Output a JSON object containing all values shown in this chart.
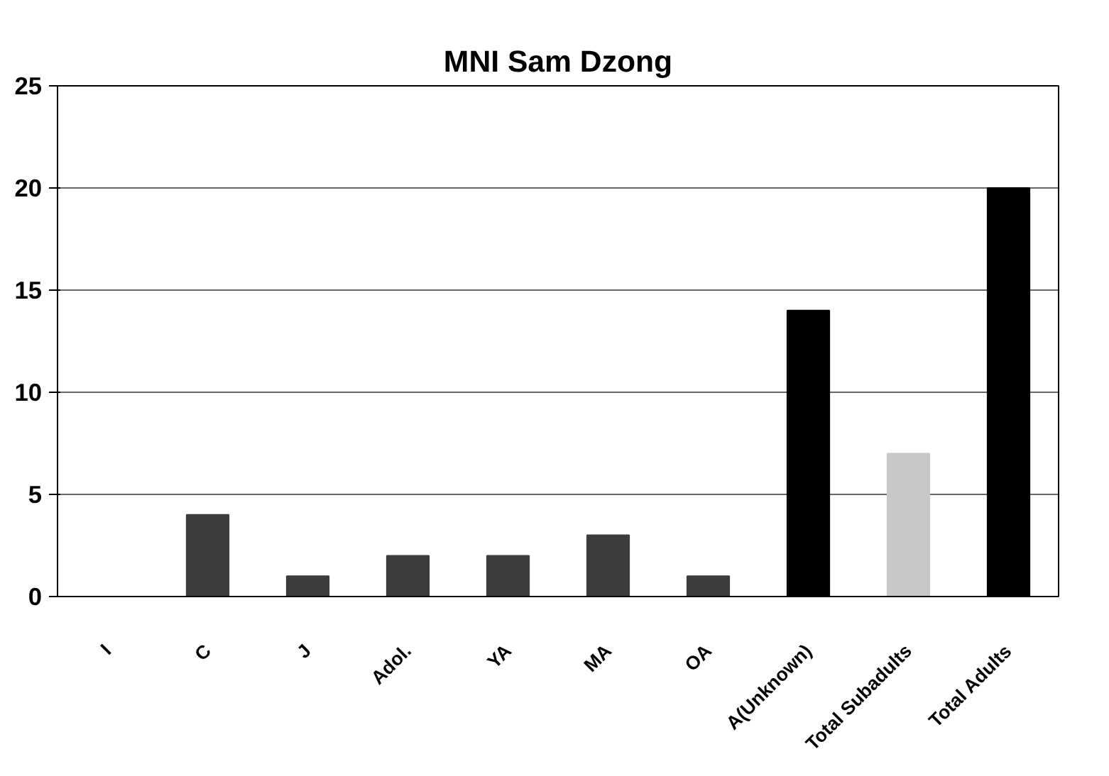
{
  "chart_data": {
    "type": "bar",
    "title": "MNI Sam Dzong",
    "categories": [
      "I",
      "C",
      "J",
      "Adol.",
      "YA",
      "MA",
      "OA",
      "A(Unknown)",
      "Total Subadults",
      "Total Adults"
    ],
    "values": [
      0,
      4,
      1,
      2,
      2,
      3,
      1,
      14,
      7,
      20
    ],
    "colors": [
      "#3c3c3c",
      "#3c3c3c",
      "#3c3c3c",
      "#3c3c3c",
      "#3c3c3c",
      "#3c3c3c",
      "#3c3c3c",
      "#000000",
      "#c8c8c8",
      "#000000"
    ],
    "ylim": [
      0,
      25
    ],
    "yticks": [
      0,
      5,
      10,
      15,
      20,
      25
    ],
    "grid": "y"
  }
}
